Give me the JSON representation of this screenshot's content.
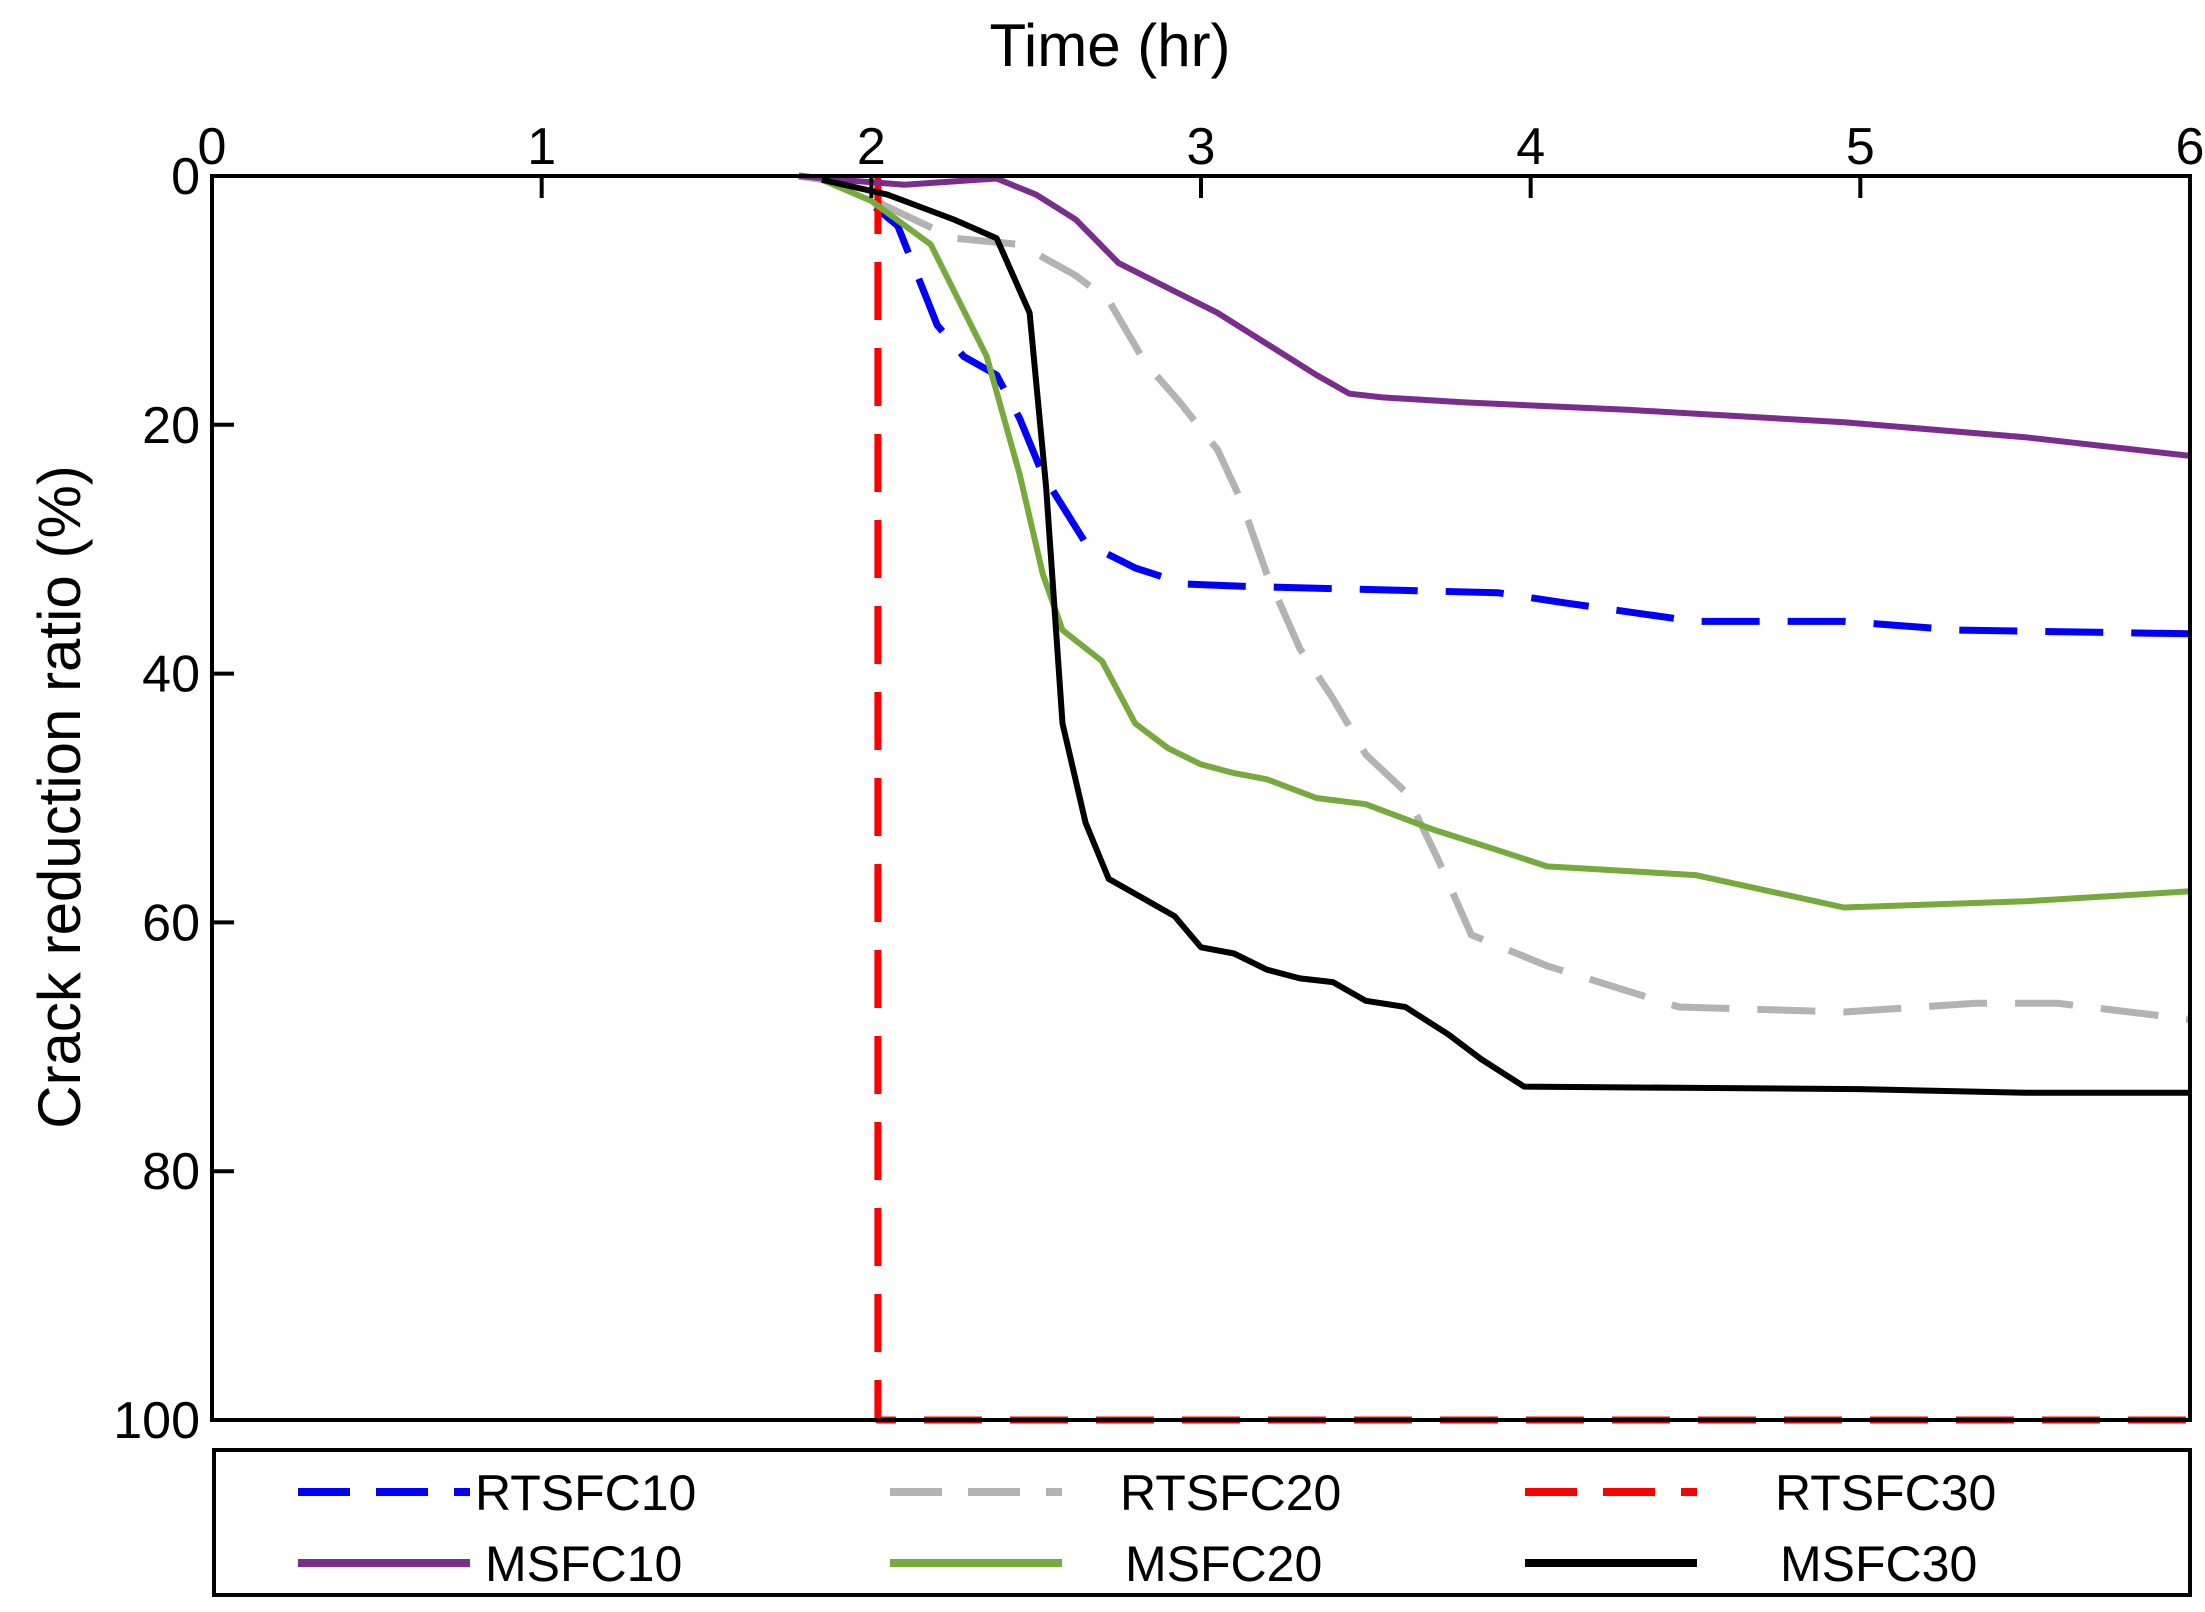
{
  "chart_data": {
    "type": "line",
    "title": "",
    "xlabel": "Time (hr)",
    "ylabel": "Crack reduction ratio (%)",
    "xlim": [
      0,
      6
    ],
    "ylim": [
      0,
      100
    ],
    "y_inverted": true,
    "x_axis_position": "top",
    "grid": false,
    "legend_position": "bottom",
    "xticks": [
      0,
      1,
      2,
      3,
      4,
      5,
      6
    ],
    "yticks": [
      0,
      20,
      40,
      60,
      80,
      100
    ],
    "series": [
      {
        "name": "RTSFC10",
        "color": "#0000ff",
        "style": "dashed",
        "points": [
          [
            1.78,
            0
          ],
          [
            1.92,
            0.5
          ],
          [
            2.08,
            4
          ],
          [
            2.2,
            12
          ],
          [
            2.28,
            14.5
          ],
          [
            2.38,
            16
          ],
          [
            2.45,
            19.5
          ],
          [
            2.52,
            24
          ],
          [
            2.65,
            29.5
          ],
          [
            2.8,
            31.5
          ],
          [
            2.95,
            32.8
          ],
          [
            3.15,
            33
          ],
          [
            3.6,
            33.3
          ],
          [
            3.9,
            33.5
          ],
          [
            4.1,
            34.3
          ],
          [
            4.5,
            35.8
          ],
          [
            4.95,
            35.8
          ],
          [
            5.3,
            36.5
          ],
          [
            6,
            36.8
          ]
        ]
      },
      {
        "name": "RTSFC20",
        "color": "#b3b3b3",
        "style": "dashed",
        "points": [
          [
            1.78,
            0
          ],
          [
            1.9,
            0.5
          ],
          [
            2.05,
            2.5
          ],
          [
            2.25,
            5
          ],
          [
            2.45,
            5.5
          ],
          [
            2.62,
            8
          ],
          [
            2.72,
            10
          ],
          [
            2.83,
            15
          ],
          [
            2.93,
            18
          ],
          [
            3.05,
            22
          ],
          [
            3.12,
            26
          ],
          [
            3.2,
            32
          ],
          [
            3.3,
            38
          ],
          [
            3.4,
            42
          ],
          [
            3.5,
            46.5
          ],
          [
            3.62,
            49.5
          ],
          [
            3.72,
            55
          ],
          [
            3.82,
            61
          ],
          [
            4.05,
            63.5
          ],
          [
            4.45,
            66.8
          ],
          [
            4.95,
            67.2
          ],
          [
            5.35,
            66.5
          ],
          [
            5.6,
            66.5
          ],
          [
            6,
            67.8
          ]
        ]
      },
      {
        "name": "RTSFC30",
        "color": "#ff0000",
        "style": "dashed",
        "points": [
          [
            2.02,
            0
          ],
          [
            2.02,
            100
          ],
          [
            6,
            100
          ]
        ]
      },
      {
        "name": "MSFC10",
        "color": "#7b2d8e",
        "style": "solid",
        "points": [
          [
            1.78,
            0
          ],
          [
            1.9,
            0.3
          ],
          [
            2.1,
            0.7
          ],
          [
            2.38,
            0.2
          ],
          [
            2.5,
            1.5
          ],
          [
            2.62,
            3.5
          ],
          [
            2.75,
            7
          ],
          [
            2.9,
            9
          ],
          [
            3.05,
            11
          ],
          [
            3.2,
            13.5
          ],
          [
            3.35,
            16
          ],
          [
            3.45,
            17.5
          ],
          [
            3.55,
            17.8
          ],
          [
            3.8,
            18.2
          ],
          [
            4.3,
            18.8
          ],
          [
            4.95,
            19.8
          ],
          [
            5.5,
            21
          ],
          [
            6,
            22.5
          ]
        ]
      },
      {
        "name": "MSFC20",
        "color": "#77aa3c",
        "style": "solid",
        "points": [
          [
            1.85,
            0.3
          ],
          [
            2.0,
            2
          ],
          [
            2.18,
            5.5
          ],
          [
            2.35,
            14.5
          ],
          [
            2.45,
            24
          ],
          [
            2.52,
            32
          ],
          [
            2.58,
            36.5
          ],
          [
            2.7,
            39
          ],
          [
            2.8,
            44
          ],
          [
            2.9,
            46
          ],
          [
            3.0,
            47.3
          ],
          [
            3.1,
            48
          ],
          [
            3.2,
            48.5
          ],
          [
            3.35,
            50
          ],
          [
            3.5,
            50.5
          ],
          [
            3.7,
            52.5
          ],
          [
            3.9,
            54.2
          ],
          [
            4.05,
            55.5
          ],
          [
            4.5,
            56.2
          ],
          [
            4.95,
            58.8
          ],
          [
            5.5,
            58.3
          ],
          [
            6,
            57.5
          ]
        ]
      },
      {
        "name": "MSFC30",
        "color": "#000000",
        "style": "solid",
        "points": [
          [
            1.85,
            0.3
          ],
          [
            2.05,
            1.5
          ],
          [
            2.25,
            3.5
          ],
          [
            2.38,
            5
          ],
          [
            2.48,
            11
          ],
          [
            2.53,
            25
          ],
          [
            2.58,
            44
          ],
          [
            2.65,
            52
          ],
          [
            2.72,
            56.5
          ],
          [
            2.82,
            58
          ],
          [
            2.92,
            59.5
          ],
          [
            3.0,
            62
          ],
          [
            3.1,
            62.5
          ],
          [
            3.2,
            63.8
          ],
          [
            3.3,
            64.5
          ],
          [
            3.4,
            64.8
          ],
          [
            3.5,
            66.3
          ],
          [
            3.62,
            66.8
          ],
          [
            3.75,
            69
          ],
          [
            3.85,
            71
          ],
          [
            3.98,
            73.2
          ],
          [
            4.5,
            73.3
          ],
          [
            5.0,
            73.4
          ],
          [
            5.5,
            73.7
          ],
          [
            6,
            73.7
          ]
        ]
      }
    ]
  }
}
